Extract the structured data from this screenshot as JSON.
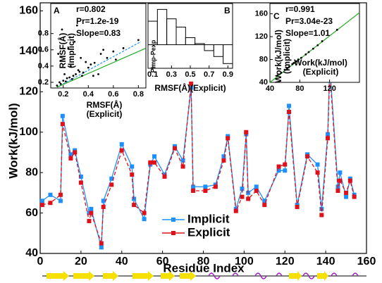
{
  "chart_data": [
    {
      "type": "line",
      "x_label": "Residue Index",
      "y_label": "Work(kJ/mol)",
      "x": [
        1,
        5,
        10,
        11,
        15,
        17,
        20,
        24,
        25,
        30,
        31,
        35,
        40,
        45,
        46,
        51,
        54,
        56,
        61,
        66,
        70,
        74,
        75,
        81,
        86,
        90,
        92,
        96,
        99,
        101,
        102,
        106,
        110,
        117,
        120,
        122,
        126,
        131,
        136,
        138,
        141,
        142,
        146,
        147,
        150,
        152,
        154
      ],
      "series": [
        {
          "name": "Implicit",
          "color": "#1e8fff",
          "marker": "square",
          "values": [
            66,
            69,
            66,
            108,
            89,
            91,
            78,
            60,
            62,
            43,
            66,
            77,
            94,
            83,
            67,
            57,
            84,
            88,
            79,
            93,
            86,
            122,
            73,
            73,
            74,
            88,
            98,
            62,
            72,
            99,
            70,
            73,
            66,
            81,
            81,
            113,
            64,
            89,
            84,
            62,
            99,
            133,
            73,
            80,
            68,
            77,
            69
          ]
        },
        {
          "name": "Explicit",
          "color": "#e0101a",
          "marker": "square",
          "values": [
            64,
            65,
            69,
            104,
            87,
            90,
            75,
            56,
            60,
            45,
            63,
            74,
            91,
            79,
            64,
            60,
            85,
            85,
            78,
            92,
            83,
            124,
            71,
            71,
            73,
            86,
            97,
            61,
            68,
            100,
            67,
            71,
            64,
            83,
            84,
            110,
            63,
            88,
            80,
            59,
            97,
            130,
            71,
            76,
            70,
            76,
            68
          ]
        }
      ],
      "xlim": [
        0,
        160
      ],
      "ylim": [
        40,
        164
      ],
      "xticks": [
        0,
        20,
        40,
        60,
        80,
        100,
        120,
        140,
        160
      ],
      "yticks": [
        40,
        60,
        80,
        100,
        120,
        140,
        160
      ]
    },
    {
      "type": "scatter",
      "panel_label": "A",
      "annotations": [
        "r=0.802",
        "Pr=1.2e-19",
        "Slope=0.83"
      ],
      "x_label": [
        "RMSF(Å)",
        "(Explicit)"
      ],
      "y_label": [
        "RMSF(Å)",
        "(Implicit)"
      ],
      "x": [
        0.15,
        0.17,
        0.18,
        0.2,
        0.21,
        0.22,
        0.23,
        0.25,
        0.26,
        0.28,
        0.3,
        0.32,
        0.34,
        0.36,
        0.38,
        0.4,
        0.42,
        0.45,
        0.48,
        0.5,
        0.55,
        0.6,
        0.62,
        0.68,
        0.8,
        0.19,
        0.24,
        0.27,
        0.31,
        0.35,
        0.16,
        0.29,
        0.33,
        0.44,
        0.52
      ],
      "values": [
        0.16,
        0.2,
        0.18,
        0.22,
        0.3,
        0.21,
        0.25,
        0.26,
        0.4,
        0.28,
        0.3,
        0.35,
        0.5,
        0.32,
        0.45,
        0.38,
        0.42,
        0.44,
        0.3,
        0.55,
        0.5,
        0.58,
        0.48,
        0.62,
        0.72,
        0.85,
        0.62,
        0.24,
        0.9,
        0.28,
        0.55,
        0.7,
        0.33,
        0.28,
        0.6
      ],
      "color": "#000000",
      "xlim": [
        0.1,
        0.86
      ],
      "ylim": [
        0.13,
        1.17
      ],
      "xticks": [
        0.2,
        0.4,
        0.6,
        0.8
      ],
      "yticks": [
        0.2,
        0.4,
        0.6,
        0.8
      ]
    },
    {
      "type": "histogram",
      "panel_label": "B",
      "x_label": "RMSF(Å)(Explicit)",
      "y_label": "Pimp-Pexp",
      "bins": [
        0.05,
        0.15,
        0.25,
        0.35,
        0.45,
        0.55,
        0.65,
        0.75,
        0.85,
        0.95
      ],
      "values": [
        0.02,
        0.03,
        0.022,
        0.015,
        0.006,
        0.001,
        -0.005,
        -0.01,
        -0.016
      ],
      "color": "#ffffff",
      "xlim": [
        0.05,
        0.95
      ],
      "ylim": [
        -0.02,
        0.035
      ],
      "xticks": [
        0.1,
        0.3,
        0.5,
        0.7,
        0.9
      ]
    },
    {
      "type": "scatter",
      "panel_label": "C",
      "annotations": [
        "r=0.991",
        "Pr=3.04e-23",
        "Slope=1.01"
      ],
      "x_label": [
        "Work(kJ/mol)",
        "(Explicit)"
      ],
      "y_label": [
        "Work(kJ/mol)",
        "(Implicit)"
      ],
      "x": [
        50,
        55,
        60,
        63,
        66,
        70,
        72,
        75,
        78,
        82,
        88,
        92,
        98,
        104,
        110,
        130
      ],
      "values": [
        52,
        57,
        62,
        64,
        68,
        72,
        74,
        77,
        80,
        83,
        89,
        93,
        99,
        105,
        112,
        132
      ],
      "color": "#000000",
      "xlim": [
        40,
        160
      ],
      "ylim": [
        40,
        178
      ],
      "xticks": [
        40,
        80,
        120
      ],
      "yticks": [
        40,
        80,
        120,
        160
      ]
    }
  ]
}
